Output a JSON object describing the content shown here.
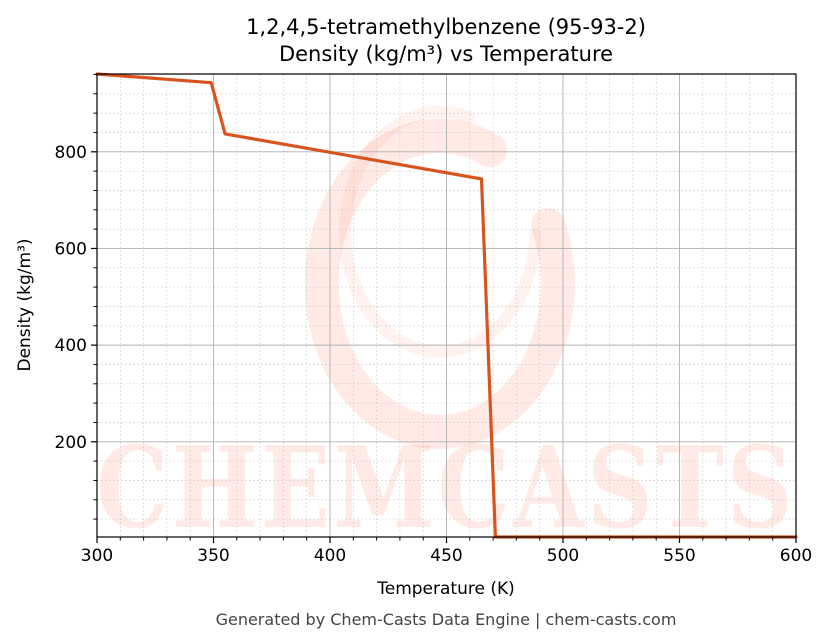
{
  "chart_data": {
    "type": "line",
    "title": "1,2,4,5-tetramethylbenzene (95-93-2)",
    "subtitle": "Density (kg/m³) vs Temperature",
    "xlabel": "Temperature (K)",
    "ylabel": "Density (kg/m³)",
    "xlim": [
      300,
      600
    ],
    "ylim": [
      3,
      961
    ],
    "x_ticks": [
      300,
      350,
      400,
      450,
      500,
      550,
      600
    ],
    "y_ticks": [
      200,
      400,
      600,
      800
    ],
    "grid": true,
    "legend": "none",
    "series": [
      {
        "color": "#d9531e",
        "points": [
          [
            300,
            961
          ],
          [
            349,
            943
          ],
          [
            355,
            837
          ],
          [
            465,
            744
          ],
          [
            471,
            3
          ],
          [
            600,
            3
          ]
        ]
      }
    ]
  },
  "watermark": {
    "text": "CHEMCASTS",
    "color": "#ff5a36"
  },
  "footer": "Generated by Chem-Casts Data Engine | chem-casts.com"
}
